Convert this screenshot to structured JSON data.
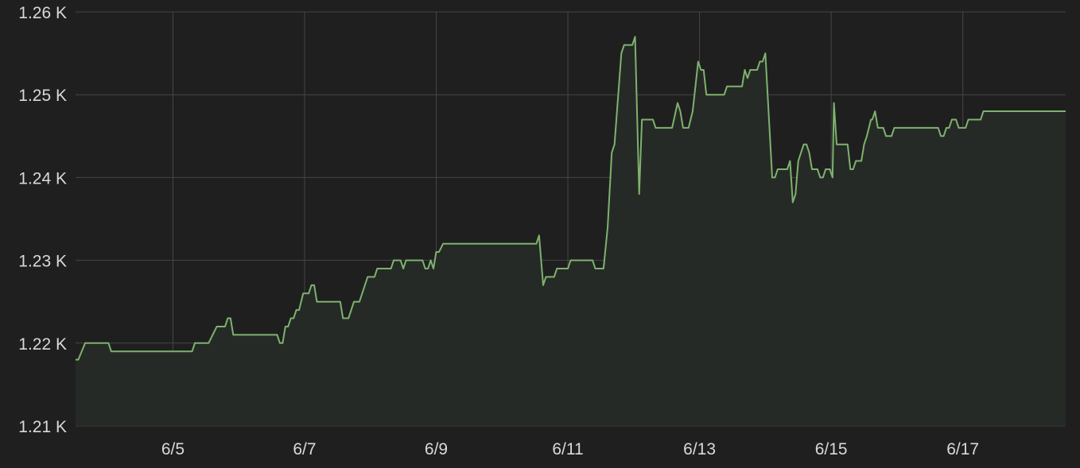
{
  "chart_data": {
    "type": "area",
    "title": "",
    "xlabel": "",
    "ylabel": "",
    "grid": true,
    "legend": "none",
    "colors": {
      "background": "#1f1f20",
      "grid": "#464646",
      "line": "#7eb26d",
      "fill": "#262a26",
      "text": "#d8d9da"
    },
    "ylim": [
      1210,
      1260
    ],
    "y_ticks": [
      {
        "value": 1210,
        "label": "1.21 K"
      },
      {
        "value": 1220,
        "label": "1.22 K"
      },
      {
        "value": 1230,
        "label": "1.23 K"
      },
      {
        "value": 1240,
        "label": "1.24 K"
      },
      {
        "value": 1250,
        "label": "1.25 K"
      },
      {
        "value": 1260,
        "label": "1.26 K"
      }
    ],
    "xlim": [
      "2024-06-03 12:30",
      "2024-06-18 13:30"
    ],
    "x_ticks": [
      {
        "value": "2024-06-05 00:00",
        "label": "6/5"
      },
      {
        "value": "2024-06-07 00:00",
        "label": "6/7"
      },
      {
        "value": "2024-06-09 00:00",
        "label": "6/9"
      },
      {
        "value": "2024-06-11 00:00",
        "label": "6/11"
      },
      {
        "value": "2024-06-13 00:00",
        "label": "6/13"
      },
      {
        "value": "2024-06-15 00:00",
        "label": "6/15"
      },
      {
        "value": "2024-06-17 00:00",
        "label": "6/17"
      }
    ],
    "series": [
      {
        "points": [
          [
            "2024-06-03 12:30",
            1218
          ],
          [
            "2024-06-03 13:30",
            1218
          ],
          [
            "2024-06-03 16:00",
            1220
          ],
          [
            "2024-06-04 00:30",
            1220
          ],
          [
            "2024-06-04 01:30",
            1219
          ],
          [
            "2024-06-05 07:00",
            1219
          ],
          [
            "2024-06-05 08:00",
            1220
          ],
          [
            "2024-06-05 13:00",
            1220
          ],
          [
            "2024-06-05 16:00",
            1222
          ],
          [
            "2024-06-05 19:00",
            1222
          ],
          [
            "2024-06-05 20:00",
            1223
          ],
          [
            "2024-06-05 21:00",
            1223
          ],
          [
            "2024-06-05 22:00",
            1221
          ],
          [
            "2024-06-06 14:00",
            1221
          ],
          [
            "2024-06-06 15:00",
            1220
          ],
          [
            "2024-06-06 16:00",
            1220
          ],
          [
            "2024-06-06 17:00",
            1222
          ],
          [
            "2024-06-06 18:00",
            1222
          ],
          [
            "2024-06-06 19:00",
            1223
          ],
          [
            "2024-06-06 20:00",
            1223
          ],
          [
            "2024-06-06 21:00",
            1224
          ],
          [
            "2024-06-06 22:00",
            1224
          ],
          [
            "2024-06-06 23:30",
            1226
          ],
          [
            "2024-06-07 01:30",
            1226
          ],
          [
            "2024-06-07 02:30",
            1227
          ],
          [
            "2024-06-07 03:30",
            1227
          ],
          [
            "2024-06-07 04:30",
            1225
          ],
          [
            "2024-06-07 13:00",
            1225
          ],
          [
            "2024-06-07 14:00",
            1223
          ],
          [
            "2024-06-07 16:00",
            1223
          ],
          [
            "2024-06-07 18:00",
            1225
          ],
          [
            "2024-06-07 20:00",
            1225
          ],
          [
            "2024-06-07 23:00",
            1228
          ],
          [
            "2024-06-08 01:30",
            1228
          ],
          [
            "2024-06-08 02:30",
            1229
          ],
          [
            "2024-06-08 07:30",
            1229
          ],
          [
            "2024-06-08 08:30",
            1230
          ],
          [
            "2024-06-08 11:00",
            1230
          ],
          [
            "2024-06-08 12:00",
            1229
          ],
          [
            "2024-06-08 13:00",
            1230
          ],
          [
            "2024-06-08 19:00",
            1230
          ],
          [
            "2024-06-08 20:00",
            1229
          ],
          [
            "2024-06-08 21:00",
            1229
          ],
          [
            "2024-06-08 22:00",
            1230
          ],
          [
            "2024-06-08 23:00",
            1229
          ],
          [
            "2024-06-08 23:59",
            1231
          ],
          [
            "2024-06-09 01:00",
            1231
          ],
          [
            "2024-06-09 02:30",
            1232
          ],
          [
            "2024-06-10 12:30",
            1232
          ],
          [
            "2024-06-10 13:30",
            1233
          ],
          [
            "2024-06-10 15:00",
            1227
          ],
          [
            "2024-06-10 16:00",
            1228
          ],
          [
            "2024-06-10 19:00",
            1228
          ],
          [
            "2024-06-10 20:00",
            1229
          ],
          [
            "2024-06-11 00:00",
            1229
          ],
          [
            "2024-06-11 01:00",
            1230
          ],
          [
            "2024-06-11 09:00",
            1230
          ],
          [
            "2024-06-11 10:00",
            1229
          ],
          [
            "2024-06-11 13:00",
            1229
          ],
          [
            "2024-06-11 14:30",
            1234
          ],
          [
            "2024-06-11 16:00",
            1243
          ],
          [
            "2024-06-11 17:00",
            1244
          ],
          [
            "2024-06-11 19:30",
            1255
          ],
          [
            "2024-06-11 20:30",
            1256
          ],
          [
            "2024-06-11 23:30",
            1256
          ],
          [
            "2024-06-12 00:30",
            1257
          ],
          [
            "2024-06-12 02:00",
            1238
          ],
          [
            "2024-06-12 03:00",
            1247
          ],
          [
            "2024-06-12 07:00",
            1247
          ],
          [
            "2024-06-12 08:00",
            1246
          ],
          [
            "2024-06-12 14:00",
            1246
          ],
          [
            "2024-06-12 16:00",
            1249
          ],
          [
            "2024-06-12 17:00",
            1248
          ],
          [
            "2024-06-12 18:00",
            1246
          ],
          [
            "2024-06-12 20:00",
            1246
          ],
          [
            "2024-06-12 21:30",
            1248
          ],
          [
            "2024-06-12 23:30",
            1254
          ],
          [
            "2024-06-13 00:30",
            1253
          ],
          [
            "2024-06-13 01:30",
            1253
          ],
          [
            "2024-06-13 02:30",
            1250
          ],
          [
            "2024-06-13 09:00",
            1250
          ],
          [
            "2024-06-13 10:00",
            1251
          ],
          [
            "2024-06-13 15:30",
            1251
          ],
          [
            "2024-06-13 16:30",
            1253
          ],
          [
            "2024-06-13 17:30",
            1252
          ],
          [
            "2024-06-13 18:30",
            1253
          ],
          [
            "2024-06-13 21:00",
            1253
          ],
          [
            "2024-06-13 22:00",
            1254
          ],
          [
            "2024-06-13 23:00",
            1254
          ],
          [
            "2024-06-14 00:00",
            1255
          ],
          [
            "2024-06-14 02:30",
            1240
          ],
          [
            "2024-06-14 03:30",
            1240
          ],
          [
            "2024-06-14 04:30",
            1241
          ],
          [
            "2024-06-14 08:00",
            1241
          ],
          [
            "2024-06-14 09:00",
            1242
          ],
          [
            "2024-06-14 10:00",
            1237
          ],
          [
            "2024-06-14 11:00",
            1238
          ],
          [
            "2024-06-14 12:00",
            1242
          ],
          [
            "2024-06-14 14:00",
            1244
          ],
          [
            "2024-06-14 15:00",
            1244
          ],
          [
            "2024-06-14 16:00",
            1243
          ],
          [
            "2024-06-14 17:00",
            1241
          ],
          [
            "2024-06-14 19:00",
            1241
          ],
          [
            "2024-06-14 20:00",
            1240
          ],
          [
            "2024-06-14 21:00",
            1240
          ],
          [
            "2024-06-14 22:00",
            1241
          ],
          [
            "2024-06-14 23:30",
            1241
          ],
          [
            "2024-06-15 00:30",
            1240
          ],
          [
            "2024-06-15 01:00",
            1249
          ],
          [
            "2024-06-15 02:00",
            1244
          ],
          [
            "2024-06-15 06:00",
            1244
          ],
          [
            "2024-06-15 07:00",
            1241
          ],
          [
            "2024-06-15 08:00",
            1241
          ],
          [
            "2024-06-15 09:00",
            1242
          ],
          [
            "2024-06-15 11:00",
            1242
          ],
          [
            "2024-06-15 12:00",
            1244
          ],
          [
            "2024-06-15 13:00",
            1245
          ],
          [
            "2024-06-15 14:30",
            1247
          ],
          [
            "2024-06-15 15:00",
            1247
          ],
          [
            "2024-06-15 16:00",
            1248
          ],
          [
            "2024-06-15 17:00",
            1246
          ],
          [
            "2024-06-15 19:00",
            1246
          ],
          [
            "2024-06-15 20:00",
            1245
          ],
          [
            "2024-06-15 22:00",
            1245
          ],
          [
            "2024-06-15 23:00",
            1246
          ],
          [
            "2024-06-16 15:00",
            1246
          ],
          [
            "2024-06-16 16:00",
            1245
          ],
          [
            "2024-06-16 17:00",
            1245
          ],
          [
            "2024-06-16 18:00",
            1246
          ],
          [
            "2024-06-16 19:00",
            1246
          ],
          [
            "2024-06-16 20:00",
            1247
          ],
          [
            "2024-06-16 21:30",
            1247
          ],
          [
            "2024-06-16 22:30",
            1246
          ],
          [
            "2024-06-17 01:00",
            1246
          ],
          [
            "2024-06-17 02:00",
            1247
          ],
          [
            "2024-06-17 06:30",
            1247
          ],
          [
            "2024-06-17 07:30",
            1248
          ],
          [
            "2024-06-18 13:30",
            1248
          ]
        ]
      }
    ]
  }
}
